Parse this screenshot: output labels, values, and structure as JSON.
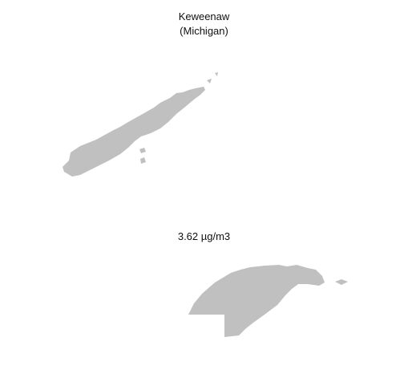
{
  "title": {
    "county": "Keweenaw",
    "state": "(Michigan)"
  },
  "measurement": {
    "value_label": "3.62 µg/m3"
  },
  "map": {
    "fill_color": "#c0c0c0",
    "background_color": "#ffffff"
  }
}
